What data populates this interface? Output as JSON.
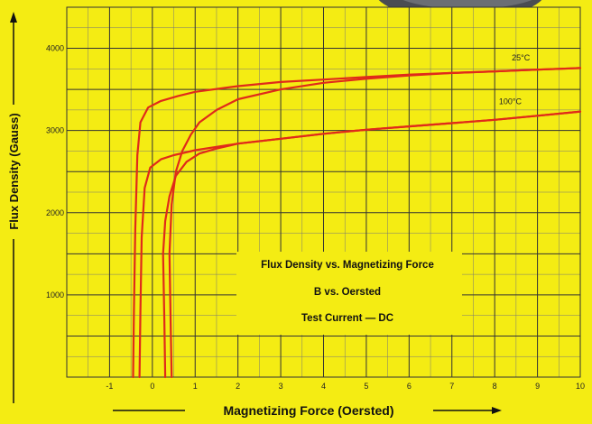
{
  "chart_data": {
    "type": "line",
    "title_lines": [
      "Flux Density vs. Magnetizing Force",
      "B vs. Oersted",
      "Test Current — DC"
    ],
    "xlabel": "Magnetizing Force (Oersted)",
    "ylabel": "Flux Density (Gauss)",
    "xlim": [
      -2,
      10
    ],
    "ylim": [
      0,
      4500
    ],
    "x_ticks": [
      -1,
      0,
      1,
      2,
      3,
      4,
      5,
      6,
      7,
      8,
      9,
      10
    ],
    "x_tick_labels": [
      "-1",
      "0",
      "1",
      "2",
      "3",
      "4",
      "5",
      "6",
      "7",
      "8",
      "9",
      "10"
    ],
    "y_ticks": [
      1000,
      2000,
      3000,
      4000
    ],
    "y_tick_labels": [
      "1000",
      "2000",
      "3000",
      "4000"
    ],
    "grid": true,
    "series": [
      {
        "name": "25°C",
        "color": "#e02a1a",
        "branches": [
          {
            "x": [
              -0.45,
              -0.43,
              -0.4,
              -0.35,
              -0.28,
              -0.1,
              0.2,
              0.6,
              1.0,
              2.0,
              3.0,
              4.0,
              5.0,
              6.0,
              7.0,
              8.0,
              9.0,
              10.0
            ],
            "y": [
              0,
              800,
              1800,
              2700,
              3100,
              3280,
              3360,
              3420,
              3470,
              3540,
              3590,
              3620,
              3650,
              3680,
              3700,
              3720,
              3740,
              3760
            ]
          },
          {
            "x": [
              0.45,
              0.43,
              0.4,
              0.45,
              0.55,
              0.7,
              0.9,
              1.1,
              1.5,
              2.0,
              3.0,
              4.0,
              5.0,
              6.0,
              7.0,
              8.0,
              9.0,
              10.0
            ],
            "y": [
              0,
              600,
              1500,
              2100,
              2500,
              2750,
              2950,
              3100,
              3250,
              3380,
              3500,
              3580,
              3630,
              3670,
              3700,
              3720,
              3740,
              3760
            ]
          }
        ]
      },
      {
        "name": "100°C",
        "color": "#e02a1a",
        "branches": [
          {
            "x": [
              -0.3,
              -0.28,
              -0.25,
              -0.18,
              -0.05,
              0.2,
              0.5,
              1.0,
              2.0,
              3.0,
              4.0,
              5.0,
              6.0,
              7.0,
              8.0,
              9.0,
              10.0
            ],
            "y": [
              0,
              800,
              1700,
              2300,
              2550,
              2650,
              2700,
              2760,
              2840,
              2900,
              2960,
              3010,
              3050,
              3090,
              3130,
              3180,
              3230
            ]
          },
          {
            "x": [
              0.3,
              0.28,
              0.25,
              0.3,
              0.4,
              0.55,
              0.8,
              1.1,
              1.5,
              2.0,
              3.0,
              4.0,
              5.0,
              6.0,
              7.0,
              8.0,
              9.0,
              10.0
            ],
            "y": [
              0,
              700,
              1500,
              1900,
              2200,
              2450,
              2620,
              2720,
              2780,
              2840,
              2900,
              2960,
              3010,
              3050,
              3090,
              3130,
              3180,
              3230
            ]
          }
        ]
      }
    ]
  }
}
